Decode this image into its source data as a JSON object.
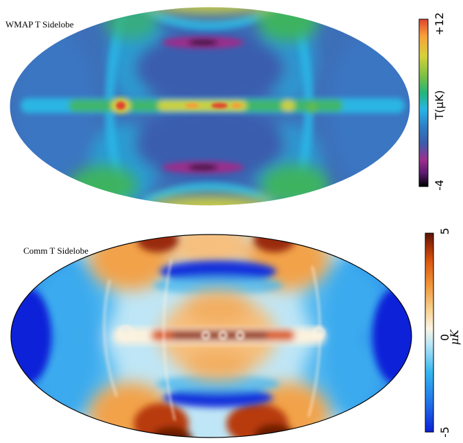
{
  "maps": [
    {
      "title": "WMAP T Sidelobe",
      "colorbar": {
        "min_label": "-4",
        "max_label": "+12",
        "unit": "T(μK)",
        "min": -4,
        "max": 12,
        "palette": [
          "#000000",
          "#5a1a70",
          "#9c2f8d",
          "#3b5cab",
          "#2e7ec6",
          "#29b4e6",
          "#24b47a",
          "#7bc043",
          "#d6d13b",
          "#f7a13a",
          "#e0442f"
        ]
      }
    },
    {
      "title": "Comm T Sidelobe",
      "colorbar": {
        "min_label": "-5",
        "mid_label": "0",
        "max_label": "5",
        "unit": "μK",
        "min": -5,
        "max": 5,
        "palette": [
          "#0b1fd6",
          "#1f6fe8",
          "#35b6f0",
          "#b8e6f5",
          "#fbf5e4",
          "#f6cf8b",
          "#f09538",
          "#d9560f",
          "#9a2c08",
          "#5a1605"
        ]
      }
    }
  ]
}
